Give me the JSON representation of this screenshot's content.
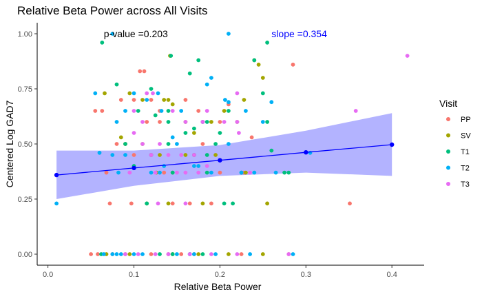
{
  "chart_data": {
    "type": "scatter",
    "title": "Relative Beta Power across All Visits",
    "xlabel": "Relative Beta Power",
    "ylabel": "Centered Log GAD7",
    "xlim": [
      -0.0125,
      0.4375
    ],
    "ylim": [
      -0.05,
      1.05
    ],
    "x_ticks": [
      0.0,
      0.1,
      0.2,
      0.3,
      0.4
    ],
    "x_tick_labels": [
      "0.0",
      "0.1",
      "0.2",
      "0.3",
      "0.4"
    ],
    "y_ticks": [
      0.0,
      0.25,
      0.5,
      0.75,
      1.0
    ],
    "y_tick_labels": [
      "0.00",
      "0.25",
      "0.50",
      "0.75",
      "1.00"
    ],
    "grid": false,
    "legend": {
      "title": "Visit",
      "position": "right"
    },
    "annotations": [
      {
        "text": "p-value =0.203",
        "x": 0.065,
        "y": 1.0,
        "color": "#000000"
      },
      {
        "text": "slope =0.354",
        "x": 0.26,
        "y": 1.0,
        "color": "#0000ff"
      }
    ],
    "series": [
      {
        "name": "PP",
        "color": "#f8766d",
        "points": [
          [
            0.05,
            0.0
          ],
          [
            0.058,
            0.0
          ],
          [
            0.075,
            0.0
          ],
          [
            0.09,
            0.0
          ],
          [
            0.12,
            0.0
          ],
          [
            0.14,
            0.0
          ],
          [
            0.155,
            0.0
          ],
          [
            0.17,
            0.0
          ],
          [
            0.225,
            0.0
          ],
          [
            0.28,
            0.0
          ],
          [
            0.055,
            0.65
          ],
          [
            0.063,
            0.65
          ],
          [
            0.085,
            0.7
          ],
          [
            0.107,
            0.83
          ],
          [
            0.112,
            0.83
          ],
          [
            0.1,
            0.7
          ],
          [
            0.12,
            0.7
          ],
          [
            0.13,
            0.65
          ],
          [
            0.16,
            0.7
          ],
          [
            0.175,
            0.65
          ],
          [
            0.2,
            0.6
          ],
          [
            0.115,
            0.6
          ],
          [
            0.13,
            0.6
          ],
          [
            0.08,
            0.5
          ],
          [
            0.09,
            0.5
          ],
          [
            0.1,
            0.45
          ],
          [
            0.12,
            0.45
          ],
          [
            0.135,
            0.37
          ],
          [
            0.145,
            0.37
          ],
          [
            0.18,
            0.5
          ],
          [
            0.2,
            0.37
          ],
          [
            0.228,
            0.37
          ],
          [
            0.072,
            0.23
          ],
          [
            0.097,
            0.23
          ],
          [
            0.145,
            0.23
          ],
          [
            0.165,
            0.23
          ],
          [
            0.19,
            0.23
          ],
          [
            0.237,
            0.53
          ],
          [
            0.285,
            0.86
          ],
          [
            0.351,
            0.23
          ],
          [
            0.068,
            0.37
          ],
          [
            0.21,
            0.68
          ],
          [
            0.17,
            0.45
          ]
        ]
      },
      {
        "name": "SV",
        "color": "#a3a500",
        "points": [
          [
            0.068,
            0.0
          ],
          [
            0.095,
            0.0
          ],
          [
            0.145,
            0.0
          ],
          [
            0.175,
            0.0
          ],
          [
            0.21,
            0.0
          ],
          [
            0.25,
            0.0
          ],
          [
            0.066,
            0.73
          ],
          [
            0.095,
            0.73
          ],
          [
            0.11,
            0.7
          ],
          [
            0.135,
            0.7
          ],
          [
            0.14,
            0.7
          ],
          [
            0.16,
            0.6
          ],
          [
            0.18,
            0.6
          ],
          [
            0.19,
            0.6
          ],
          [
            0.205,
            0.65
          ],
          [
            0.22,
            0.6
          ],
          [
            0.228,
            0.7
          ],
          [
            0.24,
            0.88
          ],
          [
            0.245,
            0.86
          ],
          [
            0.25,
            0.8
          ],
          [
            0.085,
            0.53
          ],
          [
            0.09,
            0.5
          ],
          [
            0.13,
            0.45
          ],
          [
            0.16,
            0.45
          ],
          [
            0.195,
            0.45
          ],
          [
            0.23,
            0.37
          ],
          [
            0.115,
            0.23
          ],
          [
            0.14,
            0.23
          ],
          [
            0.18,
            0.23
          ],
          [
            0.255,
            0.23
          ],
          [
            0.126,
            0.37
          ],
          [
            0.11,
            0.5
          ],
          [
            0.142,
            0.9
          ],
          [
            0.145,
            0.68
          ],
          [
            0.17,
            0.55
          ]
        ]
      },
      {
        "name": "T1",
        "color": "#00bf7d",
        "points": [
          [
            0.062,
            0.0
          ],
          [
            0.13,
            0.0
          ],
          [
            0.145,
            0.0
          ],
          [
            0.165,
            0.0
          ],
          [
            0.18,
            0.0
          ],
          [
            0.063,
            0.96
          ],
          [
            0.143,
            0.9
          ],
          [
            0.255,
            0.96
          ],
          [
            0.175,
            0.88
          ],
          [
            0.24,
            0.88
          ],
          [
            0.08,
            0.77
          ],
          [
            0.12,
            0.75
          ],
          [
            0.165,
            0.82
          ],
          [
            0.105,
            0.65
          ],
          [
            0.125,
            0.63
          ],
          [
            0.14,
            0.6
          ],
          [
            0.17,
            0.57
          ],
          [
            0.185,
            0.6
          ],
          [
            0.2,
            0.55
          ],
          [
            0.25,
            0.73
          ],
          [
            0.09,
            0.5
          ],
          [
            0.12,
            0.45
          ],
          [
            0.16,
            0.55
          ],
          [
            0.115,
            0.23
          ],
          [
            0.205,
            0.23
          ],
          [
            0.215,
            0.23
          ],
          [
            0.225,
            0.37
          ],
          [
            0.26,
            0.47
          ],
          [
            0.14,
            0.5
          ],
          [
            0.145,
            0.37
          ],
          [
            0.28,
            0.37
          ],
          [
            0.275,
            0.37
          ],
          [
            0.17,
            0.45
          ],
          [
            0.185,
            0.45
          ],
          [
            0.195,
            0.5
          ],
          [
            0.21,
            0.65
          ],
          [
            0.1,
            0.4
          ],
          [
            0.14,
            0.65
          ],
          [
            0.255,
            0.6
          ],
          [
            0.185,
            0.37
          ]
        ]
      },
      {
        "name": "T2",
        "color": "#00b0f6",
        "points": [
          [
            0.01,
            0.23
          ],
          [
            0.065,
            0.0
          ],
          [
            0.075,
            0.0
          ],
          [
            0.08,
            0.0
          ],
          [
            0.085,
            0.0
          ],
          [
            0.1,
            0.0
          ],
          [
            0.11,
            0.0
          ],
          [
            0.15,
            0.0
          ],
          [
            0.165,
            0.0
          ],
          [
            0.17,
            0.0
          ],
          [
            0.195,
            0.0
          ],
          [
            0.235,
            0.0
          ],
          [
            0.285,
            0.0
          ],
          [
            0.075,
            1.0
          ],
          [
            0.21,
            1.0
          ],
          [
            0.055,
            0.73
          ],
          [
            0.08,
            0.6
          ],
          [
            0.09,
            0.65
          ],
          [
            0.1,
            0.73
          ],
          [
            0.115,
            0.7
          ],
          [
            0.128,
            0.73
          ],
          [
            0.132,
            0.65
          ],
          [
            0.155,
            0.65
          ],
          [
            0.18,
            0.6
          ],
          [
            0.185,
            0.77
          ],
          [
            0.19,
            0.8
          ],
          [
            0.206,
            0.7
          ],
          [
            0.21,
            0.69
          ],
          [
            0.23,
            0.65
          ],
          [
            0.26,
            0.69
          ],
          [
            0.06,
            0.46
          ],
          [
            0.075,
            0.45
          ],
          [
            0.09,
            0.45
          ],
          [
            0.12,
            0.37
          ],
          [
            0.13,
            0.37
          ],
          [
            0.15,
            0.5
          ],
          [
            0.175,
            0.4
          ],
          [
            0.19,
            0.37
          ],
          [
            0.21,
            0.5
          ],
          [
            0.225,
            0.37
          ],
          [
            0.24,
            0.37
          ],
          [
            0.265,
            0.37
          ],
          [
            0.305,
            0.46
          ],
          [
            0.135,
            0.4
          ],
          [
            0.17,
            0.4
          ],
          [
            0.082,
            0.37
          ],
          [
            0.145,
            0.53
          ],
          [
            0.25,
            0.6
          ]
        ]
      },
      {
        "name": "T3",
        "color": "#e76bf3",
        "points": [
          [
            0.09,
            0.0
          ],
          [
            0.105,
            0.0
          ],
          [
            0.125,
            0.0
          ],
          [
            0.14,
            0.0
          ],
          [
            0.165,
            0.0
          ],
          [
            0.19,
            0.0
          ],
          [
            0.22,
            0.0
          ],
          [
            0.28,
            0.0
          ],
          [
            0.1,
            0.65
          ],
          [
            0.115,
            0.73
          ],
          [
            0.122,
            0.73
          ],
          [
            0.145,
            0.65
          ],
          [
            0.16,
            0.6
          ],
          [
            0.185,
            0.65
          ],
          [
            0.205,
            0.6
          ],
          [
            0.22,
            0.6
          ],
          [
            0.222,
            0.55
          ],
          [
            0.1,
            0.55
          ],
          [
            0.11,
            0.5
          ],
          [
            0.13,
            0.5
          ],
          [
            0.14,
            0.45
          ],
          [
            0.155,
            0.45
          ],
          [
            0.17,
            0.45
          ],
          [
            0.185,
            0.4
          ],
          [
            0.095,
            0.37
          ],
          [
            0.125,
            0.37
          ],
          [
            0.15,
            0.37
          ],
          [
            0.16,
            0.37
          ],
          [
            0.175,
            0.37
          ],
          [
            0.235,
            0.37
          ],
          [
            0.128,
            0.23
          ],
          [
            0.16,
            0.23
          ],
          [
            0.22,
            0.73
          ],
          [
            0.18,
            0.6
          ],
          [
            0.358,
            0.65
          ],
          [
            0.418,
            0.9
          ],
          [
            0.11,
            0.6
          ],
          [
            0.12,
            0.45
          ]
        ]
      }
    ],
    "regression_line": {
      "color": "#0000ff",
      "points": [
        [
          0.01,
          0.359
        ],
        [
          0.1,
          0.391
        ],
        [
          0.2,
          0.426
        ],
        [
          0.3,
          0.462
        ],
        [
          0.4,
          0.497
        ]
      ]
    },
    "confidence_band": {
      "color": "#b3b3ff",
      "x": [
        0.01,
        0.1,
        0.2,
        0.3,
        0.4
      ],
      "lower": [
        0.25,
        0.31,
        0.355,
        0.37,
        0.355
      ],
      "upper": [
        0.47,
        0.47,
        0.495,
        0.56,
        0.64
      ]
    }
  }
}
